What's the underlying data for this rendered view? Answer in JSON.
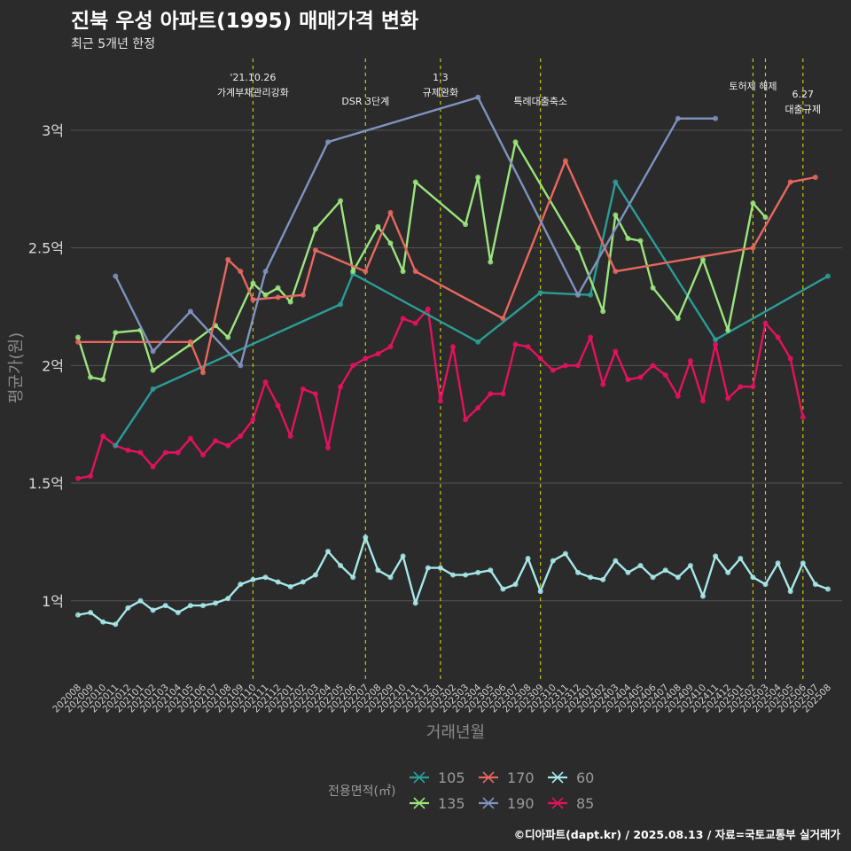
{
  "header": {
    "title": "진북 우성 아파트(1995) 매매가격 변화",
    "subtitle": "최근 5개년 한정"
  },
  "caption": "©디아파트(dapt.kr) / 2025.08.13 / 자료=국토교통부 실거래가",
  "colors": {
    "background": "#2b2b2b",
    "grid": "#555555",
    "event_line": "#d4d40a",
    "s105": "#2a9d96",
    "s135": "#9be57d",
    "s170": "#e8675f",
    "s190": "#7f93bd",
    "s60": "#a7e8e8",
    "s85": "#e5125e"
  },
  "chart_data": {
    "type": "line",
    "xlabel": "거래년월",
    "ylabel": "평균가(원)",
    "x_categories": [
      "202008",
      "202009",
      "202010",
      "202011",
      "202012",
      "202101",
      "202102",
      "202103",
      "202104",
      "202105",
      "202106",
      "202107",
      "202108",
      "202109",
      "202110",
      "202111",
      "202112",
      "202201",
      "202202",
      "202203",
      "202204",
      "202205",
      "202206",
      "202207",
      "202208",
      "202209",
      "202210",
      "202211",
      "202212",
      "202301",
      "202302",
      "202303",
      "202304",
      "202305",
      "202306",
      "202307",
      "202308",
      "202309",
      "202310",
      "202311",
      "202312",
      "202401",
      "202402",
      "202403",
      "202404",
      "202405",
      "202406",
      "202407",
      "202408",
      "202409",
      "202410",
      "202411",
      "202412",
      "202501",
      "202502",
      "202503",
      "202504",
      "202505",
      "202506",
      "202507",
      "202508"
    ],
    "y_ticks": [
      {
        "value": 1.0,
        "label": "1억"
      },
      {
        "value": 1.5,
        "label": "1.5억"
      },
      {
        "value": 2.0,
        "label": "2억"
      },
      {
        "value": 2.5,
        "label": "2.5억"
      },
      {
        "value": 3.0,
        "label": "3억"
      }
    ],
    "ylim": [
      0.66,
      3.32
    ],
    "grid": true,
    "legend": {
      "title": "전용면적(㎡)",
      "position": "bottom",
      "entries": [
        "105",
        "135",
        "170",
        "190",
        "60",
        "85"
      ]
    },
    "events": [
      {
        "date": "202110",
        "label_lines": [
          "'21.10.26",
          "가계부채관리강화"
        ]
      },
      {
        "date": "202207",
        "label_lines": [
          "DSR 3단계"
        ]
      },
      {
        "date": "202301",
        "label_lines": [
          "1.3",
          "규제완화"
        ]
      },
      {
        "date": "202309",
        "label_lines": [
          "특례대출축소"
        ]
      },
      {
        "date": "202502",
        "label_lines": [
          "토허제 해제"
        ]
      },
      {
        "date": "202503",
        "label_lines": []
      },
      {
        "date": "202506",
        "label_lines": [
          "6.27",
          "대출규제"
        ]
      }
    ],
    "series": [
      {
        "name": "60",
        "color_key": "s60",
        "points": [
          [
            "202008",
            0.94
          ],
          [
            "202009",
            0.95
          ],
          [
            "202010",
            0.91
          ],
          [
            "202011",
            0.9
          ],
          [
            "202012",
            0.97
          ],
          [
            "202101",
            1.0
          ],
          [
            "202102",
            0.96
          ],
          [
            "202103",
            0.98
          ],
          [
            "202104",
            0.95
          ],
          [
            "202105",
            0.98
          ],
          [
            "202106",
            0.98
          ],
          [
            "202107",
            0.99
          ],
          [
            "202108",
            1.01
          ],
          [
            "202109",
            1.07
          ],
          [
            "202110",
            1.09
          ],
          [
            "202111",
            1.1
          ],
          [
            "202112",
            1.08
          ],
          [
            "202201",
            1.06
          ],
          [
            "202202",
            1.08
          ],
          [
            "202203",
            1.11
          ],
          [
            "202204",
            1.21
          ],
          [
            "202205",
            1.15
          ],
          [
            "202206",
            1.1
          ],
          [
            "202207",
            1.27
          ],
          [
            "202208",
            1.13
          ],
          [
            "202209",
            1.1
          ],
          [
            "202210",
            1.19
          ],
          [
            "202211",
            0.99
          ],
          [
            "202212",
            1.14
          ],
          [
            "202301",
            1.14
          ],
          [
            "202302",
            1.11
          ],
          [
            "202303",
            1.11
          ],
          [
            "202304",
            1.12
          ],
          [
            "202305",
            1.13
          ],
          [
            "202306",
            1.05
          ],
          [
            "202307",
            1.07
          ],
          [
            "202308",
            1.18
          ],
          [
            "202309",
            1.04
          ],
          [
            "202310",
            1.17
          ],
          [
            "202311",
            1.2
          ],
          [
            "202312",
            1.12
          ],
          [
            "202401",
            1.1
          ],
          [
            "202402",
            1.09
          ],
          [
            "202403",
            1.17
          ],
          [
            "202404",
            1.12
          ],
          [
            "202405",
            1.15
          ],
          [
            "202406",
            1.1
          ],
          [
            "202407",
            1.13
          ],
          [
            "202408",
            1.1
          ],
          [
            "202409",
            1.15
          ],
          [
            "202410",
            1.02
          ],
          [
            "202411",
            1.19
          ],
          [
            "202412",
            1.12
          ],
          [
            "202501",
            1.18
          ],
          [
            "202502",
            1.1
          ],
          [
            "202503",
            1.07
          ],
          [
            "202504",
            1.16
          ],
          [
            "202505",
            1.04
          ],
          [
            "202506",
            1.16
          ],
          [
            "202507",
            1.07
          ],
          [
            "202508",
            1.05
          ]
        ]
      },
      {
        "name": "85",
        "color_key": "s85",
        "points": [
          [
            "202008",
            1.52
          ],
          [
            "202009",
            1.53
          ],
          [
            "202010",
            1.7
          ],
          [
            "202011",
            1.66
          ],
          [
            "202012",
            1.64
          ],
          [
            "202101",
            1.63
          ],
          [
            "202102",
            1.57
          ],
          [
            "202103",
            1.63
          ],
          [
            "202104",
            1.63
          ],
          [
            "202105",
            1.69
          ],
          [
            "202106",
            1.62
          ],
          [
            "202107",
            1.68
          ],
          [
            "202108",
            1.66
          ],
          [
            "202109",
            1.7
          ],
          [
            "202110",
            1.77
          ],
          [
            "202111",
            1.93
          ],
          [
            "202112",
            1.83
          ],
          [
            "202201",
            1.7
          ],
          [
            "202202",
            1.9
          ],
          [
            "202203",
            1.88
          ],
          [
            "202204",
            1.65
          ],
          [
            "202205",
            1.91
          ],
          [
            "202206",
            2.0
          ],
          [
            "202207",
            2.03
          ],
          [
            "202208",
            2.05
          ],
          [
            "202209",
            2.08
          ],
          [
            "202210",
            2.2
          ],
          [
            "202211",
            2.18
          ],
          [
            "202212",
            2.24
          ],
          [
            "202301",
            1.85
          ],
          [
            "202302",
            2.08
          ],
          [
            "202303",
            1.77
          ],
          [
            "202304",
            1.82
          ],
          [
            "202305",
            1.88
          ],
          [
            "202306",
            1.88
          ],
          [
            "202307",
            2.09
          ],
          [
            "202308",
            2.08
          ],
          [
            "202309",
            2.03
          ],
          [
            "202310",
            1.98
          ],
          [
            "202311",
            2.0
          ],
          [
            "202312",
            2.0
          ],
          [
            "202401",
            2.12
          ],
          [
            "202402",
            1.92
          ],
          [
            "202403",
            2.06
          ],
          [
            "202404",
            1.94
          ],
          [
            "202405",
            1.95
          ],
          [
            "202406",
            2.0
          ],
          [
            "202407",
            1.96
          ],
          [
            "202408",
            1.87
          ],
          [
            "202409",
            2.02
          ],
          [
            "202410",
            1.85
          ],
          [
            "202411",
            2.09
          ],
          [
            "202412",
            1.86
          ],
          [
            "202501",
            1.91
          ],
          [
            "202502",
            1.91
          ],
          [
            "202503",
            2.18
          ],
          [
            "202504",
            2.12
          ],
          [
            "202505",
            2.03
          ],
          [
            "202506",
            1.78
          ],
          [
            "202507",
            null
          ],
          [
            "202508",
            null
          ]
        ]
      },
      {
        "name": "105",
        "color_key": "s105",
        "points": [
          [
            "202011",
            1.66
          ],
          [
            "202102",
            1.9
          ],
          [
            "202205",
            2.26
          ],
          [
            "202206",
            2.39
          ],
          [
            "202304",
            2.1
          ],
          [
            "202309",
            2.31
          ],
          [
            "202401",
            2.3
          ],
          [
            "202403",
            2.78
          ],
          [
            "202411",
            2.11
          ],
          [
            "202508",
            2.38
          ]
        ]
      },
      {
        "name": "135",
        "color_key": "s135",
        "points": [
          [
            "202008",
            2.12
          ],
          [
            "202009",
            1.95
          ],
          [
            "202010",
            1.94
          ],
          [
            "202011",
            2.14
          ],
          [
            "202101",
            2.15
          ],
          [
            "202102",
            1.98
          ],
          [
            "202105",
            2.09
          ],
          [
            "202107",
            2.17
          ],
          [
            "202108",
            2.12
          ],
          [
            "202110",
            2.35
          ],
          [
            "202111",
            2.3
          ],
          [
            "202112",
            2.33
          ],
          [
            "202201",
            2.27
          ],
          [
            "202203",
            2.58
          ],
          [
            "202205",
            2.7
          ],
          [
            "202206",
            2.4
          ],
          [
            "202208",
            2.59
          ],
          [
            "202209",
            2.52
          ],
          [
            "202210",
            2.4
          ],
          [
            "202211",
            2.78
          ],
          [
            "202303",
            2.6
          ],
          [
            "202304",
            2.8
          ],
          [
            "202305",
            2.44
          ],
          [
            "202307",
            2.95
          ],
          [
            "202312",
            2.5
          ],
          [
            "202402",
            2.23
          ],
          [
            "202403",
            2.64
          ],
          [
            "202404",
            2.54
          ],
          [
            "202405",
            2.53
          ],
          [
            "202406",
            2.33
          ],
          [
            "202408",
            2.2
          ],
          [
            "202410",
            2.45
          ],
          [
            "202412",
            2.15
          ],
          [
            "202502",
            2.69
          ],
          [
            "202503",
            2.63
          ]
        ]
      },
      {
        "name": "170",
        "color_key": "s170",
        "points": [
          [
            "202008",
            2.1
          ],
          [
            "202105",
            2.1
          ],
          [
            "202106",
            1.97
          ],
          [
            "202108",
            2.45
          ],
          [
            "202109",
            2.4
          ],
          [
            "202110",
            2.28
          ],
          [
            "202112",
            2.29
          ],
          [
            "202202",
            2.3
          ],
          [
            "202203",
            2.49
          ],
          [
            "202207",
            2.4
          ],
          [
            "202209",
            2.65
          ],
          [
            "202211",
            2.4
          ],
          [
            "202306",
            2.2
          ],
          [
            "202311",
            2.87
          ],
          [
            "202403",
            2.4
          ],
          [
            "202502",
            2.5
          ],
          [
            "202505",
            2.78
          ],
          [
            "202507",
            2.8
          ]
        ]
      },
      {
        "name": "190",
        "color_key": "s190",
        "points": [
          [
            "202011",
            2.38
          ],
          [
            "202102",
            2.06
          ],
          [
            "202105",
            2.23
          ],
          [
            "202109",
            2.0
          ],
          [
            "202111",
            2.4
          ],
          [
            "202204",
            2.95
          ],
          [
            "202304",
            3.14
          ],
          [
            "202312",
            2.3
          ],
          [
            "202408",
            3.05
          ],
          [
            "202411",
            3.05
          ]
        ]
      }
    ]
  }
}
